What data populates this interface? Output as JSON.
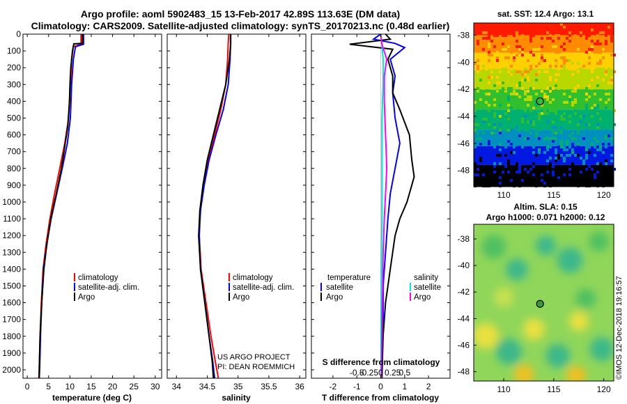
{
  "title_line1": "Argo profile: aoml 5902483_15 13-Feb-2017 42.89S 113.63E (DM data)",
  "title_line2": "Climatology: CARS2009. Satellite-adjusted climatology: synTS_20170213.nc (0.48d earlier)",
  "depth_ticks": [
    "0",
    "100",
    "200",
    "300",
    "400",
    "500",
    "600",
    "700",
    "800",
    "900",
    "1000",
    "1100",
    "1200",
    "1300",
    "1400",
    "1500",
    "1600",
    "1700",
    "1800",
    "1900",
    "2000"
  ],
  "colors": {
    "climatology": "#ff0000",
    "satellite": "#0000ff",
    "argo": "#000000",
    "cyan": "#00e5e5",
    "magenta": "#ff00ff"
  },
  "chart_data": [
    {
      "type": "line",
      "name": "temperature-panel",
      "xlabel": "temperature (deg C)",
      "ylabel": "depth",
      "xlim": [
        -1,
        31.5
      ],
      "ylim": [
        2050,
        0
      ],
      "xticks": [
        "0",
        "5",
        "10",
        "15",
        "20",
        "25",
        "30"
      ],
      "legend": [
        "climatology",
        "satellite-adj. clim.",
        "Argo"
      ],
      "series": [
        {
          "name": "climatology",
          "color": "#ff0000",
          "points": [
            [
              12.6,
              0
            ],
            [
              12.6,
              30
            ],
            [
              12.6,
              60
            ],
            [
              10.8,
              75
            ],
            [
              10.4,
              150
            ],
            [
              10.1,
              300
            ],
            [
              9.7,
              500
            ],
            [
              8.8,
              650
            ],
            [
              7.6,
              800
            ],
            [
              6.4,
              950
            ],
            [
              5.3,
              1100
            ],
            [
              4.4,
              1250
            ],
            [
              3.7,
              1400
            ],
            [
              3.3,
              1600
            ],
            [
              3.0,
              1800
            ],
            [
              2.8,
              2000
            ],
            [
              2.7,
              2050
            ]
          ]
        },
        {
          "name": "satellite-adj. clim.",
          "color": "#0000ff",
          "points": [
            [
              13.2,
              0
            ],
            [
              13.2,
              30
            ],
            [
              13.2,
              60
            ],
            [
              11.3,
              75
            ],
            [
              10.8,
              150
            ],
            [
              10.4,
              300
            ],
            [
              10.1,
              500
            ],
            [
              9.4,
              650
            ],
            [
              8.2,
              800
            ],
            [
              6.9,
              950
            ],
            [
              5.6,
              1100
            ],
            [
              4.6,
              1250
            ],
            [
              3.8,
              1400
            ],
            [
              3.4,
              1600
            ],
            [
              3.1,
              1800
            ],
            [
              2.9,
              2000
            ],
            [
              2.8,
              2050
            ]
          ]
        },
        {
          "name": "Argo",
          "color": "#000000",
          "points": [
            [
              12.9,
              0
            ],
            [
              12.9,
              40
            ],
            [
              12.9,
              55
            ],
            [
              10.9,
              58
            ],
            [
              10.6,
              100
            ],
            [
              10.2,
              200
            ],
            [
              10.0,
              300
            ],
            [
              9.9,
              400
            ],
            [
              9.5,
              550
            ],
            [
              8.9,
              650
            ],
            [
              8.0,
              800
            ],
            [
              6.8,
              950
            ],
            [
              5.5,
              1100
            ],
            [
              4.6,
              1250
            ],
            [
              3.9,
              1400
            ],
            [
              3.4,
              1600
            ],
            [
              3.0,
              1800
            ],
            [
              2.8,
              2000
            ],
            [
              2.8,
              2050
            ]
          ]
        }
      ]
    },
    {
      "type": "line",
      "name": "salinity-panel",
      "xlabel": "salinity",
      "ylabel": "depth",
      "xlim": [
        33.85,
        36.1
      ],
      "ylim": [
        2050,
        0
      ],
      "xticks": [
        "34",
        "34.5",
        "35",
        "35.5",
        "36"
      ],
      "legend": [
        "climatology",
        "satellite-adj. clim.",
        "Argo"
      ],
      "series": [
        {
          "name": "climatology",
          "color": "#ff0000",
          "points": [
            [
              34.85,
              0
            ],
            [
              34.84,
              50
            ],
            [
              34.83,
              150
            ],
            [
              34.8,
              300
            ],
            [
              34.72,
              450
            ],
            [
              34.62,
              600
            ],
            [
              34.52,
              750
            ],
            [
              34.44,
              900
            ],
            [
              34.38,
              1050
            ],
            [
              34.37,
              1200
            ],
            [
              34.4,
              1400
            ],
            [
              34.48,
              1600
            ],
            [
              34.56,
              1800
            ],
            [
              34.63,
              1950
            ],
            [
              34.68,
              2050
            ]
          ]
        },
        {
          "name": "satellite-adj. clim.",
          "color": "#0000ff",
          "points": [
            [
              34.88,
              0
            ],
            [
              34.88,
              50
            ],
            [
              34.87,
              150
            ],
            [
              34.84,
              300
            ],
            [
              34.76,
              450
            ],
            [
              34.64,
              600
            ],
            [
              34.53,
              750
            ],
            [
              34.45,
              900
            ],
            [
              34.39,
              1050
            ],
            [
              34.37,
              1200
            ],
            [
              34.39,
              1400
            ],
            [
              34.46,
              1600
            ],
            [
              34.53,
              1800
            ],
            [
              34.59,
              1950
            ],
            [
              34.62,
              2050
            ]
          ]
        },
        {
          "name": "Argo",
          "color": "#000000",
          "points": [
            [
              34.88,
              0
            ],
            [
              34.88,
              60
            ],
            [
              34.86,
              150
            ],
            [
              34.8,
              300
            ],
            [
              34.7,
              450
            ],
            [
              34.6,
              600
            ],
            [
              34.5,
              750
            ],
            [
              34.43,
              900
            ],
            [
              34.38,
              1050
            ],
            [
              34.36,
              1200
            ],
            [
              34.39,
              1400
            ],
            [
              34.46,
              1600
            ],
            [
              34.53,
              1800
            ],
            [
              34.58,
              1950
            ],
            [
              34.6,
              2050
            ]
          ]
        }
      ],
      "credit_line1": "US ARGO PROJECT",
      "credit_line2": "PI: DEAN ROEMMICH"
    },
    {
      "type": "line",
      "name": "difference-panel",
      "xlabel": "T difference from climatology",
      "ylabel": "depth",
      "xlim": [
        -2.9,
        2.9
      ],
      "ylim": [
        2050,
        0
      ],
      "xticks": [
        "-2",
        "-1",
        "0",
        "1",
        "2"
      ],
      "second_xlabel": "S difference from climatology",
      "second_xticks": [
        "-0.5",
        "-0.25",
        "0",
        "0.25",
        "0.5"
      ],
      "legend_left_title": "temperature",
      "legend_right_title": "salinity",
      "legend_left": [
        "satellite",
        "Argo"
      ],
      "legend_right": [
        "satellite",
        "Argo"
      ],
      "series": [
        {
          "name": "temperature satellite",
          "color": "#0000ff",
          "points": [
            [
              0,
              0
            ],
            [
              -0.3,
              30
            ],
            [
              0.6,
              55
            ],
            [
              1.0,
              80
            ],
            [
              0.4,
              150
            ],
            [
              0.6,
              250
            ],
            [
              0.5,
              350
            ],
            [
              0.6,
              500
            ],
            [
              0.8,
              650
            ],
            [
              0.6,
              800
            ],
            [
              0.4,
              950
            ],
            [
              0.3,
              1100
            ],
            [
              0.2,
              1300
            ],
            [
              0.1,
              1500
            ],
            [
              0.1,
              1700
            ],
            [
              0.05,
              2050
            ]
          ]
        },
        {
          "name": "temperature Argo",
          "color": "#000000",
          "points": [
            [
              0.2,
              0
            ],
            [
              0.4,
              30
            ],
            [
              -1.3,
              60
            ],
            [
              0.5,
              90
            ],
            [
              0.3,
              150
            ],
            [
              0.5,
              250
            ],
            [
              0.5,
              350
            ],
            [
              0.8,
              450
            ],
            [
              1.2,
              600
            ],
            [
              1.3,
              750
            ],
            [
              1.4,
              850
            ],
            [
              1.1,
              1000
            ],
            [
              0.8,
              1100
            ],
            [
              0.6,
              1200
            ],
            [
              0.4,
              1400
            ],
            [
              0.2,
              1600
            ],
            [
              0.1,
              1800
            ],
            [
              0.05,
              2050
            ]
          ]
        },
        {
          "name": "salinity satellite",
          "color": "#00e5e5",
          "points": [
            [
              0,
              0
            ],
            [
              0.05,
              60
            ],
            [
              0.1,
              150
            ],
            [
              0.1,
              300
            ],
            [
              0.05,
              500
            ],
            [
              0.05,
              700
            ],
            [
              0.05,
              900
            ],
            [
              0.05,
              1100
            ],
            [
              0.03,
              1300
            ],
            [
              0.02,
              1500
            ],
            [
              0.02,
              1700
            ],
            [
              0.01,
              2050
            ]
          ]
        },
        {
          "name": "salinity Argo",
          "color": "#ff00ff",
          "points": [
            [
              0,
              0
            ],
            [
              0.05,
              60
            ],
            [
              0.25,
              150
            ],
            [
              0.15,
              250
            ],
            [
              0.15,
              400
            ],
            [
              0.2,
              600
            ],
            [
              0.25,
              800
            ],
            [
              0.2,
              950
            ],
            [
              0.15,
              1100
            ],
            [
              0.1,
              1300
            ],
            [
              0.08,
              1500
            ],
            [
              0.05,
              1700
            ],
            [
              0.02,
              2050
            ]
          ]
        }
      ]
    },
    {
      "type": "heatmap",
      "name": "sst-map",
      "title": "sat. SST: 12.4 Argo: 13.1",
      "xticks": [
        "110",
        "115",
        "120"
      ],
      "yticks": [
        "-38",
        "-40",
        "-42",
        "-44",
        "-46",
        "-48"
      ],
      "xlim": [
        107,
        121
      ],
      "ylim": [
        -49.2,
        -37.1
      ],
      "marker": [
        113.63,
        -42.89
      ],
      "color_bands": [
        {
          "lat_top": -37.1,
          "lat_bottom": -38.0,
          "color": "#ff1a00"
        },
        {
          "lat_top": -38.0,
          "lat_bottom": -39.3,
          "color": "#ff8c00"
        },
        {
          "lat_top": -39.3,
          "lat_bottom": -40.5,
          "color": "#ffd000"
        },
        {
          "lat_top": -40.5,
          "lat_bottom": -42.0,
          "color": "#b8d800"
        },
        {
          "lat_top": -42.0,
          "lat_bottom": -43.5,
          "color": "#2fbf2f"
        },
        {
          "lat_top": -43.5,
          "lat_bottom": -45.0,
          "color": "#00b070"
        },
        {
          "lat_top": -45.0,
          "lat_bottom": -46.2,
          "color": "#0090c0"
        },
        {
          "lat_top": -46.2,
          "lat_bottom": -47.6,
          "color": "#0018e0"
        },
        {
          "lat_top": -47.6,
          "lat_bottom": -49.2,
          "color": "#000000"
        }
      ]
    },
    {
      "type": "heatmap",
      "name": "sla-map",
      "title_line1": "Altim. SLA: 0.15",
      "title_line2": "Argo h1000: 0.071 h2000: 0.12",
      "xticks": [
        "110",
        "115",
        "120"
      ],
      "yticks": [
        "-38",
        "-40",
        "-42",
        "-44",
        "-46",
        "-48"
      ],
      "xlim": [
        107,
        121
      ],
      "ylim": [
        -48.7,
        -36.9
      ],
      "marker": [
        113.63,
        -42.89
      ],
      "base_color": "#8fd65a",
      "blobs": [
        {
          "lon": 109.0,
          "lat": -38.6,
          "r": 1.2,
          "color": "#50c060"
        },
        {
          "lon": 111.3,
          "lat": -40.3,
          "r": 1.1,
          "color": "#3cb88a"
        },
        {
          "lon": 114.2,
          "lat": -38.5,
          "r": 1.0,
          "color": "#3cb88a"
        },
        {
          "lon": 116.6,
          "lat": -39.6,
          "r": 1.3,
          "color": "#3cb88a"
        },
        {
          "lon": 119.5,
          "lat": -38.2,
          "r": 1.0,
          "color": "#50c060"
        },
        {
          "lon": 110.0,
          "lat": -42.4,
          "r": 1.0,
          "color": "#c6e050"
        },
        {
          "lon": 118.2,
          "lat": -42.5,
          "r": 1.0,
          "color": "#50c060"
        },
        {
          "lon": 108.2,
          "lat": -45.3,
          "r": 1.3,
          "color": "#e8e040"
        },
        {
          "lon": 110.5,
          "lat": -46.5,
          "r": 1.3,
          "color": "#3cb88a"
        },
        {
          "lon": 113.0,
          "lat": -44.8,
          "r": 1.1,
          "color": "#e8e040"
        },
        {
          "lon": 115.4,
          "lat": -46.8,
          "r": 1.2,
          "color": "#3cb88a"
        },
        {
          "lon": 117.5,
          "lat": -44.2,
          "r": 1.0,
          "color": "#e8e040"
        },
        {
          "lon": 119.8,
          "lat": -46.3,
          "r": 1.2,
          "color": "#3cb88a"
        },
        {
          "lon": 112.0,
          "lat": -48.2,
          "r": 1.0,
          "color": "#f0c020"
        },
        {
          "lon": 117.2,
          "lat": -48.3,
          "r": 1.0,
          "color": "#f0c020"
        }
      ]
    }
  ],
  "imos_credit": "©IMOS 12-Dec-2018 19:16:57"
}
